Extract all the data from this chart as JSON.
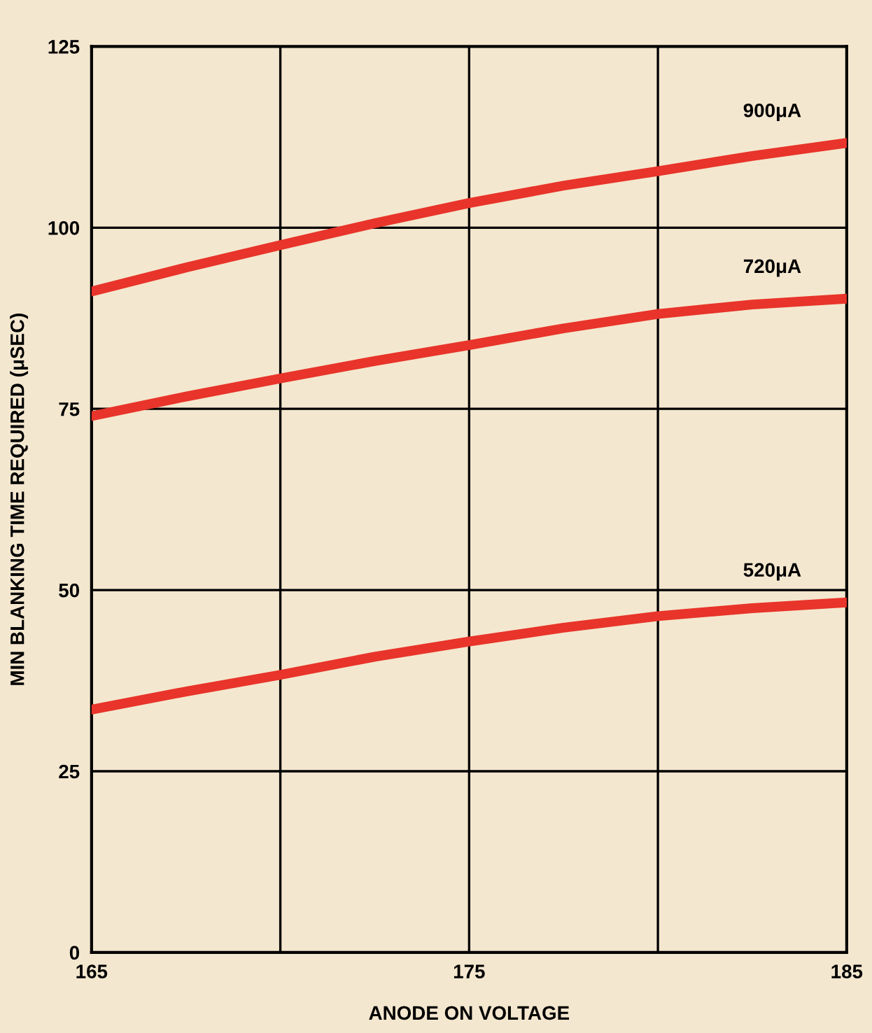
{
  "chart_data": {
    "type": "line",
    "xlabel": "ANODE ON VOLTAGE",
    "ylabel": "MIN BLANKING TIME REQUIRED (μSEC)",
    "x": [
      165,
      167.5,
      170,
      172.5,
      175,
      177.5,
      180,
      182.5,
      185
    ],
    "series": [
      {
        "name": "900μA",
        "color": "#e8342a",
        "values": [
          91.2,
          94.5,
          97.6,
          100.6,
          103.4,
          105.8,
          107.8,
          109.9,
          111.7
        ]
      },
      {
        "name": "720μA",
        "color": "#e8342a",
        "values": [
          74,
          76.7,
          79.2,
          81.6,
          83.8,
          86.1,
          88.1,
          89.4,
          90.2
        ]
      },
      {
        "name": "520μA",
        "color": "#e8342a",
        "values": [
          33.5,
          36,
          38.3,
          40.8,
          42.9,
          44.8,
          46.4,
          47.5,
          48.3
        ]
      }
    ],
    "xlim": [
      165,
      185
    ],
    "xticks": [
      165,
      {
        "value": 170,
        "label": null
      },
      175,
      {
        "value": 180,
        "label": null
      },
      185
    ],
    "ylim": [
      0,
      125
    ],
    "yticks": [
      0,
      25,
      50,
      75,
      100,
      125
    ],
    "grid": true,
    "marker": "none",
    "line_style": "solid",
    "legend": false
  }
}
